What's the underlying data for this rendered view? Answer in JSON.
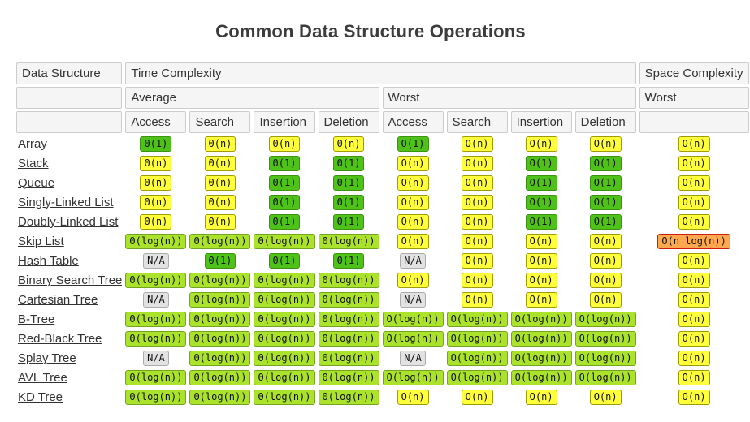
{
  "title": "Common Data Structure Operations",
  "colors": {
    "green": {
      "bg": "#4FC21A",
      "border": "#3D9212"
    },
    "yellow": {
      "bg": "#FFFF3B",
      "border": "#9D9D00"
    },
    "yellowgreen": {
      "bg": "#AAE22C",
      "border": "#74A51E"
    },
    "orange": {
      "bg": "#FFA84D",
      "border": "#CC1D0F"
    },
    "na": {
      "bg": "#E2E2E2",
      "border": "#ABABAB"
    }
  },
  "table": {
    "header": {
      "data_structure": "Data Structure",
      "time_complexity": "Time Complexity",
      "space_complexity": "Space Complexity",
      "average": "Average",
      "worst_time": "Worst",
      "worst_space": "Worst",
      "ops": [
        "Access",
        "Search",
        "Insertion",
        "Deletion",
        "Access",
        "Search",
        "Insertion",
        "Deletion"
      ]
    },
    "rows": [
      {
        "name": "Array",
        "cells": [
          {
            "t": "Θ(1)",
            "c": "green"
          },
          {
            "t": "Θ(n)",
            "c": "yellow"
          },
          {
            "t": "Θ(n)",
            "c": "yellow"
          },
          {
            "t": "Θ(n)",
            "c": "yellow"
          },
          {
            "t": "O(1)",
            "c": "green"
          },
          {
            "t": "O(n)",
            "c": "yellow"
          },
          {
            "t": "O(n)",
            "c": "yellow"
          },
          {
            "t": "O(n)",
            "c": "yellow"
          },
          {
            "t": "O(n)",
            "c": "yellow"
          }
        ]
      },
      {
        "name": "Stack",
        "cells": [
          {
            "t": "Θ(n)",
            "c": "yellow"
          },
          {
            "t": "Θ(n)",
            "c": "yellow"
          },
          {
            "t": "Θ(1)",
            "c": "green"
          },
          {
            "t": "Θ(1)",
            "c": "green"
          },
          {
            "t": "O(n)",
            "c": "yellow"
          },
          {
            "t": "O(n)",
            "c": "yellow"
          },
          {
            "t": "O(1)",
            "c": "green"
          },
          {
            "t": "O(1)",
            "c": "green"
          },
          {
            "t": "O(n)",
            "c": "yellow"
          }
        ]
      },
      {
        "name": "Queue",
        "cells": [
          {
            "t": "Θ(n)",
            "c": "yellow"
          },
          {
            "t": "Θ(n)",
            "c": "yellow"
          },
          {
            "t": "Θ(1)",
            "c": "green"
          },
          {
            "t": "Θ(1)",
            "c": "green"
          },
          {
            "t": "O(n)",
            "c": "yellow"
          },
          {
            "t": "O(n)",
            "c": "yellow"
          },
          {
            "t": "O(1)",
            "c": "green"
          },
          {
            "t": "O(1)",
            "c": "green"
          },
          {
            "t": "O(n)",
            "c": "yellow"
          }
        ]
      },
      {
        "name": "Singly-Linked List",
        "cells": [
          {
            "t": "Θ(n)",
            "c": "yellow"
          },
          {
            "t": "Θ(n)",
            "c": "yellow"
          },
          {
            "t": "Θ(1)",
            "c": "green"
          },
          {
            "t": "Θ(1)",
            "c": "green"
          },
          {
            "t": "O(n)",
            "c": "yellow"
          },
          {
            "t": "O(n)",
            "c": "yellow"
          },
          {
            "t": "O(1)",
            "c": "green"
          },
          {
            "t": "O(1)",
            "c": "green"
          },
          {
            "t": "O(n)",
            "c": "yellow"
          }
        ]
      },
      {
        "name": "Doubly-Linked List",
        "cells": [
          {
            "t": "Θ(n)",
            "c": "yellow"
          },
          {
            "t": "Θ(n)",
            "c": "yellow"
          },
          {
            "t": "Θ(1)",
            "c": "green"
          },
          {
            "t": "Θ(1)",
            "c": "green"
          },
          {
            "t": "O(n)",
            "c": "yellow"
          },
          {
            "t": "O(n)",
            "c": "yellow"
          },
          {
            "t": "O(1)",
            "c": "green"
          },
          {
            "t": "O(1)",
            "c": "green"
          },
          {
            "t": "O(n)",
            "c": "yellow"
          }
        ]
      },
      {
        "name": "Skip List",
        "cells": [
          {
            "t": "Θ(log(n))",
            "c": "yellowgreen"
          },
          {
            "t": "Θ(log(n))",
            "c": "yellowgreen"
          },
          {
            "t": "Θ(log(n))",
            "c": "yellowgreen"
          },
          {
            "t": "Θ(log(n))",
            "c": "yellowgreen"
          },
          {
            "t": "O(n)",
            "c": "yellow"
          },
          {
            "t": "O(n)",
            "c": "yellow"
          },
          {
            "t": "O(n)",
            "c": "yellow"
          },
          {
            "t": "O(n)",
            "c": "yellow"
          },
          {
            "t": "O(n log(n))",
            "c": "orange"
          }
        ]
      },
      {
        "name": "Hash Table",
        "cells": [
          {
            "t": "N/A",
            "c": "na"
          },
          {
            "t": "Θ(1)",
            "c": "green"
          },
          {
            "t": "Θ(1)",
            "c": "green"
          },
          {
            "t": "Θ(1)",
            "c": "green"
          },
          {
            "t": "N/A",
            "c": "na"
          },
          {
            "t": "O(n)",
            "c": "yellow"
          },
          {
            "t": "O(n)",
            "c": "yellow"
          },
          {
            "t": "O(n)",
            "c": "yellow"
          },
          {
            "t": "O(n)",
            "c": "yellow"
          }
        ]
      },
      {
        "name": "Binary Search Tree",
        "cells": [
          {
            "t": "Θ(log(n))",
            "c": "yellowgreen"
          },
          {
            "t": "Θ(log(n))",
            "c": "yellowgreen"
          },
          {
            "t": "Θ(log(n))",
            "c": "yellowgreen"
          },
          {
            "t": "Θ(log(n))",
            "c": "yellowgreen"
          },
          {
            "t": "O(n)",
            "c": "yellow"
          },
          {
            "t": "O(n)",
            "c": "yellow"
          },
          {
            "t": "O(n)",
            "c": "yellow"
          },
          {
            "t": "O(n)",
            "c": "yellow"
          },
          {
            "t": "O(n)",
            "c": "yellow"
          }
        ]
      },
      {
        "name": "Cartesian Tree",
        "cells": [
          {
            "t": "N/A",
            "c": "na"
          },
          {
            "t": "Θ(log(n))",
            "c": "yellowgreen"
          },
          {
            "t": "Θ(log(n))",
            "c": "yellowgreen"
          },
          {
            "t": "Θ(log(n))",
            "c": "yellowgreen"
          },
          {
            "t": "N/A",
            "c": "na"
          },
          {
            "t": "O(n)",
            "c": "yellow"
          },
          {
            "t": "O(n)",
            "c": "yellow"
          },
          {
            "t": "O(n)",
            "c": "yellow"
          },
          {
            "t": "O(n)",
            "c": "yellow"
          }
        ]
      },
      {
        "name": "B-Tree",
        "cells": [
          {
            "t": "Θ(log(n))",
            "c": "yellowgreen"
          },
          {
            "t": "Θ(log(n))",
            "c": "yellowgreen"
          },
          {
            "t": "Θ(log(n))",
            "c": "yellowgreen"
          },
          {
            "t": "Θ(log(n))",
            "c": "yellowgreen"
          },
          {
            "t": "O(log(n))",
            "c": "yellowgreen"
          },
          {
            "t": "O(log(n))",
            "c": "yellowgreen"
          },
          {
            "t": "O(log(n))",
            "c": "yellowgreen"
          },
          {
            "t": "O(log(n))",
            "c": "yellowgreen"
          },
          {
            "t": "O(n)",
            "c": "yellow"
          }
        ]
      },
      {
        "name": "Red-Black Tree",
        "cells": [
          {
            "t": "Θ(log(n))",
            "c": "yellowgreen"
          },
          {
            "t": "Θ(log(n))",
            "c": "yellowgreen"
          },
          {
            "t": "Θ(log(n))",
            "c": "yellowgreen"
          },
          {
            "t": "Θ(log(n))",
            "c": "yellowgreen"
          },
          {
            "t": "O(log(n))",
            "c": "yellowgreen"
          },
          {
            "t": "O(log(n))",
            "c": "yellowgreen"
          },
          {
            "t": "O(log(n))",
            "c": "yellowgreen"
          },
          {
            "t": "O(log(n))",
            "c": "yellowgreen"
          },
          {
            "t": "O(n)",
            "c": "yellow"
          }
        ]
      },
      {
        "name": "Splay Tree",
        "cells": [
          {
            "t": "N/A",
            "c": "na"
          },
          {
            "t": "Θ(log(n))",
            "c": "yellowgreen"
          },
          {
            "t": "Θ(log(n))",
            "c": "yellowgreen"
          },
          {
            "t": "Θ(log(n))",
            "c": "yellowgreen"
          },
          {
            "t": "N/A",
            "c": "na"
          },
          {
            "t": "O(log(n))",
            "c": "yellowgreen"
          },
          {
            "t": "O(log(n))",
            "c": "yellowgreen"
          },
          {
            "t": "O(log(n))",
            "c": "yellowgreen"
          },
          {
            "t": "O(n)",
            "c": "yellow"
          }
        ]
      },
      {
        "name": "AVL Tree",
        "cells": [
          {
            "t": "Θ(log(n))",
            "c": "yellowgreen"
          },
          {
            "t": "Θ(log(n))",
            "c": "yellowgreen"
          },
          {
            "t": "Θ(log(n))",
            "c": "yellowgreen"
          },
          {
            "t": "Θ(log(n))",
            "c": "yellowgreen"
          },
          {
            "t": "O(log(n))",
            "c": "yellowgreen"
          },
          {
            "t": "O(log(n))",
            "c": "yellowgreen"
          },
          {
            "t": "O(log(n))",
            "c": "yellowgreen"
          },
          {
            "t": "O(log(n))",
            "c": "yellowgreen"
          },
          {
            "t": "O(n)",
            "c": "yellow"
          }
        ]
      },
      {
        "name": "KD Tree",
        "cells": [
          {
            "t": "Θ(log(n))",
            "c": "yellowgreen"
          },
          {
            "t": "Θ(log(n))",
            "c": "yellowgreen"
          },
          {
            "t": "Θ(log(n))",
            "c": "yellowgreen"
          },
          {
            "t": "Θ(log(n))",
            "c": "yellowgreen"
          },
          {
            "t": "O(n)",
            "c": "yellow"
          },
          {
            "t": "O(n)",
            "c": "yellow"
          },
          {
            "t": "O(n)",
            "c": "yellow"
          },
          {
            "t": "O(n)",
            "c": "yellow"
          },
          {
            "t": "O(n)",
            "c": "yellow"
          }
        ]
      }
    ]
  }
}
